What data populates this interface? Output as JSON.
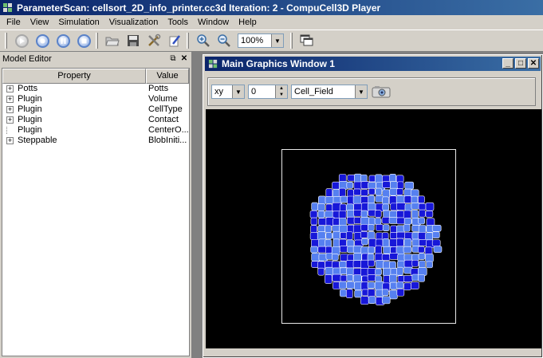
{
  "window": {
    "title": "ParameterScan: cellsort_2D_info_printer.cc3d Iteration: 2 - CompuCell3D Player"
  },
  "menu": [
    "File",
    "View",
    "Simulation",
    "Visualization",
    "Tools",
    "Window",
    "Help"
  ],
  "toolbar": {
    "zoom": "100%"
  },
  "model_editor": {
    "title": "Model Editor",
    "columns": {
      "property": "Property",
      "value": "Value"
    },
    "rows": [
      {
        "property": "Potts",
        "value": "Potts",
        "expandable": true
      },
      {
        "property": "Plugin",
        "value": "Volume",
        "expandable": true
      },
      {
        "property": "Plugin",
        "value": "CellType",
        "expandable": true
      },
      {
        "property": "Plugin",
        "value": "Contact",
        "expandable": true
      },
      {
        "property": "Plugin",
        "value": "CenterO...",
        "expandable": false
      },
      {
        "property": "Steppable",
        "value": "BlobIniti...",
        "expandable": true
      }
    ]
  },
  "graphics_window": {
    "title": "Main Graphics Window 1",
    "plane": "xy",
    "slice": "0",
    "field": "Cell_Field"
  },
  "colors": {
    "medium": "#000000",
    "cell_type_1": "#5680f0",
    "cell_type_2": "#1717d8",
    "boundary": "#ffffff"
  }
}
